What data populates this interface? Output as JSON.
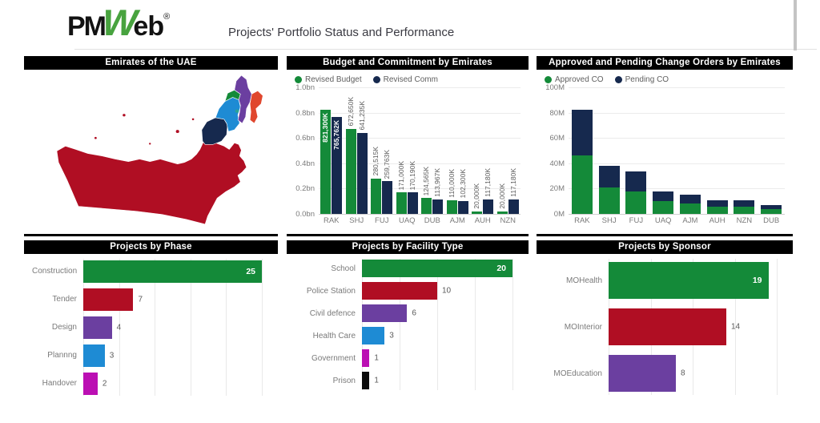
{
  "header": {
    "logo": {
      "pm": "PM",
      "w": "W",
      "eb": "eb",
      "reg": "®"
    },
    "title": "Projects' Portfolio Status and Performance"
  },
  "map": {
    "title": "Emirates of the UAE",
    "regions": [
      {
        "id": "abudhabi",
        "name": "Abu Dhabi",
        "color": "#B00E23"
      },
      {
        "id": "dubai",
        "name": "Dubai",
        "color": "#16294E"
      },
      {
        "id": "sharjah",
        "name": "Sharjah",
        "color": "#1E8BD4"
      },
      {
        "id": "ajman",
        "name": "Ajman",
        "color": "#148A39"
      },
      {
        "id": "rak",
        "name": "Ras Al Khaimah",
        "color": "#6B3FA0"
      },
      {
        "id": "fujairah",
        "name": "Fujairah",
        "color": "#E0472E"
      },
      {
        "id": "uaq",
        "name": "Umm Al Quwain",
        "color": "#2AA198"
      }
    ]
  },
  "colors": {
    "green": "#148A39",
    "navy": "#16294E",
    "red": "#B00E23",
    "purple": "#6B3FA0",
    "blue": "#1E8BD4",
    "magenta": "#BB0FB3",
    "black": "#0B0B0B",
    "grid": "#e9e9e9"
  },
  "chart_data": [
    {
      "id": "budget",
      "type": "bar",
      "title": "Budget and Commitment by Emirates",
      "categories": [
        "RAK",
        "SHJ",
        "FUJ",
        "UAQ",
        "DUB",
        "AJM",
        "AUH",
        "NZN"
      ],
      "series": [
        {
          "name": "Revised Budget",
          "color": "#148A39",
          "values": [
            821300,
            672650,
            280515,
            171000,
            124565,
            110000,
            20000,
            20000
          ],
          "labels": [
            "821,300K",
            "672,650K",
            "280,515K",
            "171,000K",
            "124,565K",
            "110,000K",
            "20,000K",
            "20,000K"
          ]
        },
        {
          "name": "Revised Comm",
          "color": "#16294E",
          "values": [
            765762,
            641235,
            259763,
            170190,
            113967,
            102300,
            117180,
            117180
          ],
          "labels": [
            "765,762K",
            "641,235K",
            "259,763K",
            "170,190K",
            "113,967K",
            "102,300K",
            "117,180K",
            "117,180K"
          ]
        }
      ],
      "ylim": [
        0,
        1000000
      ],
      "yticks": [
        "0.0bn",
        "0.2bn",
        "0.4bn",
        "0.6bn",
        "0.8bn",
        "1.0bn"
      ],
      "inside_label_category": "RAK",
      "legend_position": "top",
      "grid": true
    },
    {
      "id": "changeorders",
      "type": "stacked-bar",
      "title": "Approved and Pending Change Orders by Emirates",
      "categories": [
        "RAK",
        "SHJ",
        "FUJ",
        "UAQ",
        "AJM",
        "AUH",
        "NZN",
        "DUB"
      ],
      "series": [
        {
          "name": "Approved CO",
          "color": "#148A39",
          "values": [
            46,
            21,
            18,
            10,
            8.5,
            5.5,
            5.5,
            3.5
          ]
        },
        {
          "name": "Pending CO",
          "color": "#16294E",
          "values": [
            36.5,
            17,
            15.5,
            7.5,
            7,
            5.5,
            5.5,
            3.5
          ]
        }
      ],
      "ylim": [
        0,
        100
      ],
      "yticks": [
        "0M",
        "20M",
        "40M",
        "60M",
        "80M",
        "100M"
      ],
      "legend_position": "top",
      "grid": true
    },
    {
      "id": "phase",
      "type": "hbar",
      "title": "Projects by Phase",
      "categories": [
        "Construction",
        "Tender",
        "Design",
        "Plannng",
        "Handover"
      ],
      "values": [
        25,
        7,
        4,
        3,
        2
      ],
      "colors": [
        "#148A39",
        "#B00E23",
        "#6B3FA0",
        "#1E8BD4",
        "#BB0FB3"
      ],
      "xlim": [
        0,
        25
      ],
      "xtick_step": 5,
      "grid": true
    },
    {
      "id": "facility",
      "type": "hbar",
      "title": "Projects by Facility Type",
      "categories": [
        "School",
        "Police Station",
        "Civil defence",
        "Health Care",
        "Government",
        "Prison"
      ],
      "values": [
        20,
        10,
        6,
        3,
        1,
        1
      ],
      "colors": [
        "#148A39",
        "#B00E23",
        "#6B3FA0",
        "#1E8BD4",
        "#BB0FB3",
        "#0B0B0B"
      ],
      "xlim": [
        0,
        20
      ],
      "xtick_step": 5,
      "grid": true
    },
    {
      "id": "sponsor",
      "type": "hbar",
      "title": "Projects by Sponsor",
      "categories": [
        "MOHealth",
        "MOInterior",
        "MOEducation"
      ],
      "values": [
        19,
        14,
        8
      ],
      "colors": [
        "#148A39",
        "#B00E23",
        "#6B3FA0"
      ],
      "xlim": [
        0,
        20
      ],
      "xtick_step": 5,
      "grid": true
    }
  ]
}
